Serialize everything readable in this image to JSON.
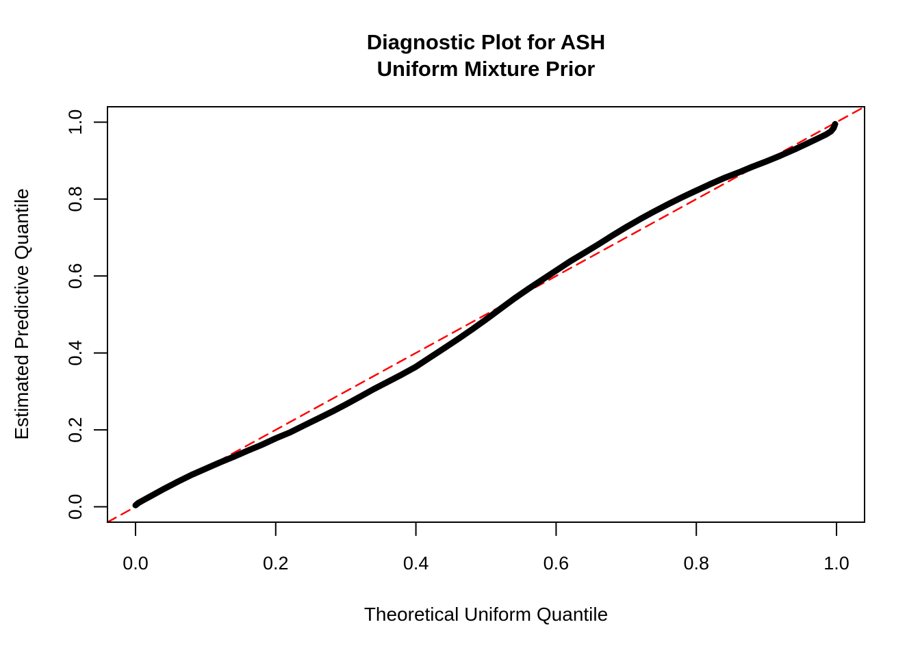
{
  "page": {
    "background": "#ffffff",
    "foreground": "#000000"
  },
  "chart_data": {
    "type": "line",
    "title_lines": [
      "Diagnostic Plot for ASH",
      "Uniform Mixture Prior"
    ],
    "xlabel": "Theoretical Uniform Quantile",
    "ylabel": "Estimated Predictive Quantile",
    "xlim": [
      -0.04,
      1.04
    ],
    "ylim": [
      -0.04,
      1.04
    ],
    "grid": false,
    "legend": null,
    "x_tick_values": [
      0.0,
      0.2,
      0.4,
      0.6,
      0.8,
      1.0
    ],
    "x_tick_labels": [
      "0.0",
      "0.2",
      "0.4",
      "0.6",
      "0.8",
      "1.0"
    ],
    "y_tick_values": [
      0.0,
      0.2,
      0.4,
      0.6,
      0.8,
      1.0
    ],
    "y_tick_labels": [
      "0.0",
      "0.2",
      "0.4",
      "0.6",
      "0.8",
      "1.0"
    ],
    "series": [
      {
        "name": "estimated-predictive-quantile-curve",
        "color": "#000000",
        "stroke_width": 9,
        "dash": null,
        "points": [
          [
            0.0,
            0.004
          ],
          [
            0.004,
            0.01
          ],
          [
            0.01,
            0.016
          ],
          [
            0.02,
            0.026
          ],
          [
            0.04,
            0.046
          ],
          [
            0.06,
            0.065
          ],
          [
            0.08,
            0.083
          ],
          [
            0.1,
            0.099
          ],
          [
            0.12,
            0.115
          ],
          [
            0.14,
            0.13
          ],
          [
            0.16,
            0.146
          ],
          [
            0.18,
            0.161
          ],
          [
            0.2,
            0.178
          ],
          [
            0.22,
            0.193
          ],
          [
            0.24,
            0.211
          ],
          [
            0.26,
            0.229
          ],
          [
            0.28,
            0.247
          ],
          [
            0.3,
            0.266
          ],
          [
            0.32,
            0.286
          ],
          [
            0.34,
            0.306
          ],
          [
            0.36,
            0.325
          ],
          [
            0.38,
            0.344
          ],
          [
            0.4,
            0.364
          ],
          [
            0.42,
            0.388
          ],
          [
            0.44,
            0.412
          ],
          [
            0.46,
            0.436
          ],
          [
            0.48,
            0.461
          ],
          [
            0.5,
            0.487
          ],
          [
            0.52,
            0.514
          ],
          [
            0.54,
            0.541
          ],
          [
            0.56,
            0.566
          ],
          [
            0.58,
            0.59
          ],
          [
            0.6,
            0.614
          ],
          [
            0.62,
            0.638
          ],
          [
            0.64,
            0.66
          ],
          [
            0.66,
            0.682
          ],
          [
            0.68,
            0.705
          ],
          [
            0.7,
            0.727
          ],
          [
            0.72,
            0.748
          ],
          [
            0.74,
            0.768
          ],
          [
            0.76,
            0.787
          ],
          [
            0.78,
            0.805
          ],
          [
            0.8,
            0.822
          ],
          [
            0.82,
            0.839
          ],
          [
            0.84,
            0.855
          ],
          [
            0.86,
            0.869
          ],
          [
            0.88,
            0.884
          ],
          [
            0.9,
            0.898
          ],
          [
            0.92,
            0.913
          ],
          [
            0.94,
            0.929
          ],
          [
            0.96,
            0.946
          ],
          [
            0.975,
            0.959
          ],
          [
            0.985,
            0.968
          ],
          [
            0.992,
            0.976
          ],
          [
            0.996,
            0.985
          ],
          [
            0.998,
            0.995
          ]
        ]
      },
      {
        "name": "identity-reference-line",
        "color": "#FF0000",
        "stroke_width": 2.5,
        "dash": [
          14,
          9
        ],
        "points": [
          [
            -0.04,
            -0.04
          ],
          [
            1.04,
            1.04
          ]
        ]
      }
    ]
  }
}
